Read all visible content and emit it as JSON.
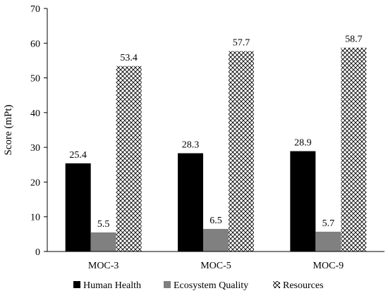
{
  "chart_data": {
    "type": "bar",
    "categories": [
      "MOC-3",
      "MOC-5",
      "MOC-9"
    ],
    "series": [
      {
        "name": "Human Health",
        "values": [
          25.4,
          28.3,
          28.9
        ],
        "labels": [
          "25.4",
          "28.3",
          "28.9"
        ],
        "color": "#000000",
        "fill": "solid"
      },
      {
        "name": "Ecosystem Quality",
        "values": [
          5.5,
          6.5,
          5.7
        ],
        "labels": [
          "5.5",
          "6.5",
          "5.7"
        ],
        "color": "#808080",
        "fill": "solid"
      },
      {
        "name": "Resources",
        "values": [
          53.4,
          57.7,
          58.7
        ],
        "labels": [
          "53.4",
          "57.7",
          "58.7"
        ],
        "color": "#000000",
        "fill": "crosshatch"
      }
    ],
    "title": "",
    "xlabel": "",
    "ylabel": "Score (mPt)",
    "ylim": [
      0,
      70
    ],
    "yticks": [
      "0",
      "10",
      "20",
      "30",
      "40",
      "50",
      "60",
      "70"
    ],
    "grid": false,
    "legend_position": "bottom"
  }
}
